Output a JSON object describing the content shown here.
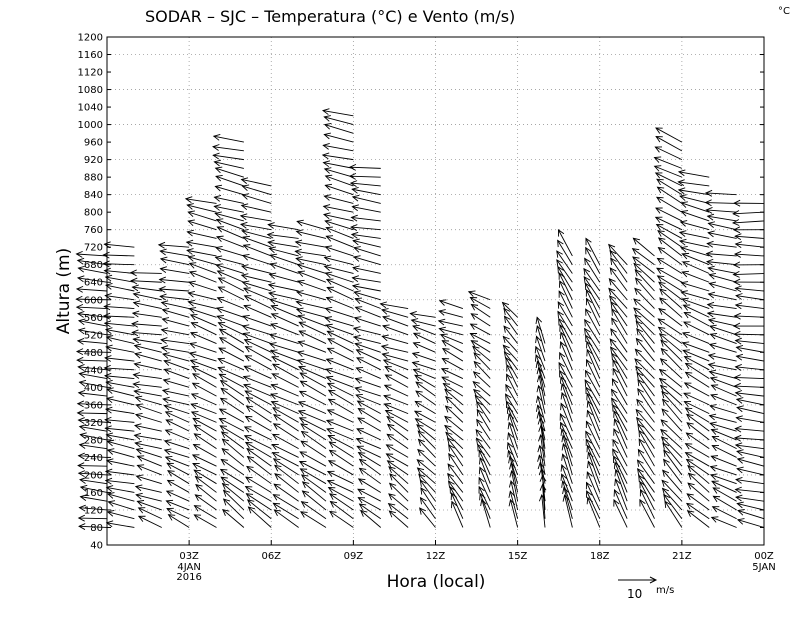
{
  "chart_data": {
    "type": "wind-barb-profile",
    "title": "SODAR – SJC – Temperatura (°C) e Vento (m/s)",
    "corner_unit": "°C",
    "xlabel": "Hora (local)",
    "ylabel": "Altura (m)",
    "ylim": [
      40,
      1200
    ],
    "y_ticks": [
      40,
      80,
      120,
      160,
      200,
      240,
      280,
      320,
      360,
      400,
      440,
      480,
      520,
      560,
      600,
      640,
      680,
      720,
      760,
      800,
      840,
      880,
      920,
      960,
      1000,
      1040,
      1080,
      1120,
      1160,
      1200
    ],
    "xlim_hours": [
      0,
      24
    ],
    "x_ticks": [
      {
        "hour": 3,
        "label": "03Z",
        "sub": [
          "4JAN",
          "2016"
        ]
      },
      {
        "hour": 6,
        "label": "06Z",
        "sub": []
      },
      {
        "hour": 9,
        "label": "09Z",
        "sub": []
      },
      {
        "hour": 12,
        "label": "12Z",
        "sub": []
      },
      {
        "hour": 15,
        "label": "15Z",
        "sub": []
      },
      {
        "hour": 18,
        "label": "18Z",
        "sub": []
      },
      {
        "hour": 21,
        "label": "21Z",
        "sub": []
      },
      {
        "hour": 24,
        "label": "00Z",
        "sub": [
          "5JAN"
        ]
      }
    ],
    "reference_vector": {
      "speed": 10,
      "label": "10",
      "unit": "m/s"
    },
    "profile_step_hours": 1,
    "level_step_m": 20,
    "profiles": [
      {
        "hour": 0,
        "top": 700,
        "u": -9,
        "v": 1,
        "uTop": -10,
        "vTop": 1
      },
      {
        "hour": 1,
        "top": 720,
        "u": -9,
        "v": 2,
        "uTop": -10,
        "vTop": 1
      },
      {
        "hour": 2,
        "top": 670,
        "u": -8,
        "v": 3,
        "uTop": -10,
        "vTop": 1
      },
      {
        "hour": 3,
        "top": 720,
        "u": -7,
        "v": 4,
        "uTop": -10,
        "vTop": 1
      },
      {
        "hour": 4,
        "top": 830,
        "u": -7,
        "v": 5,
        "uTop": -10,
        "vTop": 2
      },
      {
        "hour": 5,
        "top": 960,
        "u": -7,
        "v": 6,
        "uTop": -10,
        "vTop": 2
      },
      {
        "hour": 6,
        "top": 860,
        "u": -8,
        "v": 6,
        "uTop": -10,
        "vTop": 2
      },
      {
        "hour": 7,
        "top": 760,
        "u": -8,
        "v": 6,
        "uTop": -10,
        "vTop": 2
      },
      {
        "hour": 8,
        "top": 760,
        "u": -8,
        "v": 6,
        "uTop": -10,
        "vTop": 2
      },
      {
        "hour": 9,
        "top": 1020,
        "u": -8,
        "v": 5,
        "uTop": -10,
        "vTop": 2
      },
      {
        "hour": 10,
        "top": 900,
        "u": -7,
        "v": 5,
        "uTop": -10,
        "vTop": 1
      },
      {
        "hour": 11,
        "top": 580,
        "u": -6,
        "v": 6,
        "uTop": -9,
        "vTop": 2
      },
      {
        "hour": 12,
        "top": 560,
        "u": -5,
        "v": 7,
        "uTop": -8,
        "vTop": 2
      },
      {
        "hour": 13,
        "top": 580,
        "u": -4,
        "v": 8,
        "uTop": -8,
        "vTop": 2
      },
      {
        "hour": 14,
        "top": 600,
        "u": -3,
        "v": 9,
        "uTop": -7,
        "vTop": 3
      },
      {
        "hour": 15,
        "top": 560,
        "u": -2,
        "v": 10,
        "uTop": -5,
        "vTop": 5
      },
      {
        "hour": 16,
        "top": 500,
        "u": -1,
        "v": 11,
        "uTop": -3,
        "vTop": 8
      },
      {
        "hour": 17,
        "top": 700,
        "u": -3,
        "v": 10,
        "uTop": -5,
        "vTop": 8
      },
      {
        "hour": 18,
        "top": 680,
        "u": -4,
        "v": 10,
        "uTop": -5,
        "vTop": 8
      },
      {
        "hour": 19,
        "top": 680,
        "u": -4,
        "v": 10,
        "uTop": -6,
        "vTop": 7
      },
      {
        "hour": 20,
        "top": 700,
        "u": -5,
        "v": 9,
        "uTop": -7,
        "vTop": 6
      },
      {
        "hour": 21,
        "top": 960,
        "u": -6,
        "v": 8,
        "uTop": -9,
        "vTop": 4
      },
      {
        "hour": 22,
        "top": 880,
        "u": -7,
        "v": 6,
        "uTop": -10,
        "vTop": 2
      },
      {
        "hour": 23,
        "top": 840,
        "u": -8,
        "v": 4,
        "uTop": -10,
        "vTop": 1
      },
      {
        "hour": 24,
        "top": 820,
        "u": -9,
        "v": 2,
        "uTop": -10,
        "vTop": 0
      }
    ]
  }
}
